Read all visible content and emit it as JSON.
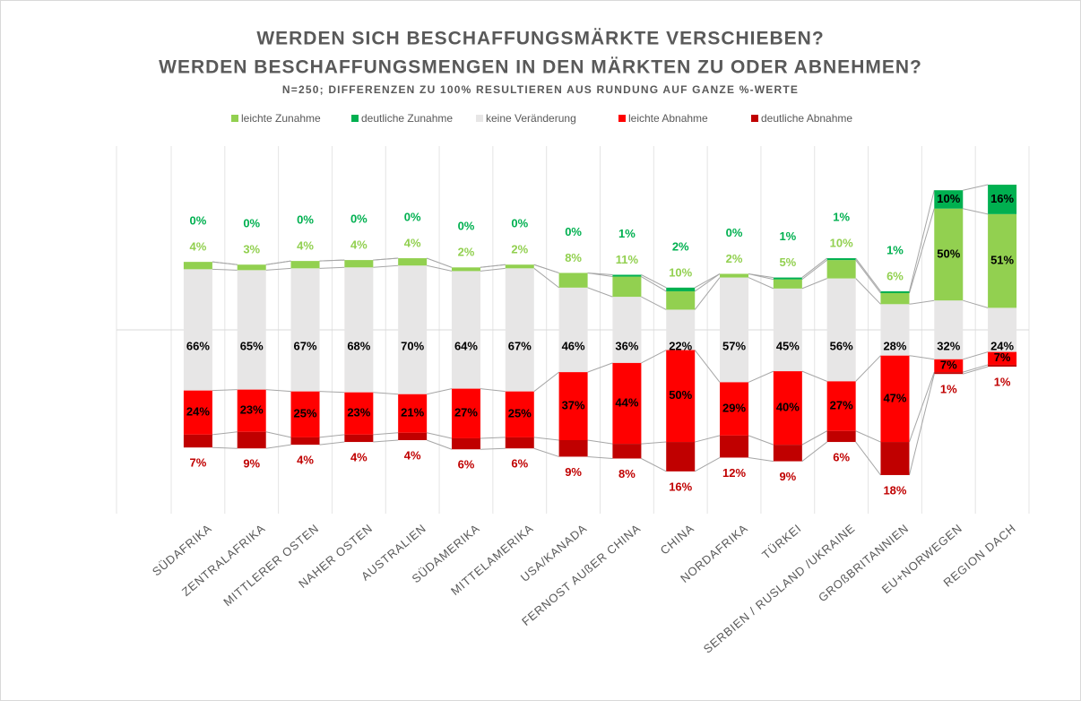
{
  "chart_data": {
    "type": "bar",
    "title": [
      "WERDEN SICH BESCHAFFUNGSMÄRKTE VERSCHIEBEN?",
      "WERDEN BESCHAFFUNGSMENGEN IN DEN MÄRKTEN ZU ODER ABNEHMEN?"
    ],
    "subtitle": "N=250; DIFFERENZEN ZU 100% RESULTIEREN AUS RUNDUNG AUF GANZE %-WERTE",
    "categories": [
      "SÜDAFRIKA",
      "ZENTRALAFRIKA",
      "MITTLERER OSTEN",
      "NAHER OSTEN",
      "AUSTRALIEN",
      "SÜDAMERIKA",
      "MITTELAMERIKA",
      "USA/KANADA",
      "FERNOST AUßER CHINA",
      "CHINA",
      "NORDAFRIKA",
      "TÜRKEI",
      "SERBIEN / RUSLAND /UKRAINE",
      "GROßBRITANNIEN",
      "EU+NORWEGEN",
      "REGION DACH"
    ],
    "series": [
      {
        "name": "leichte Zunahme",
        "color": "#92d050",
        "label_color": "#92d050",
        "values": [
          4,
          3,
          4,
          4,
          4,
          2,
          2,
          8,
          11,
          10,
          2,
          5,
          10,
          6,
          50,
          51
        ],
        "value_labels": [
          "4%",
          "3%",
          "4%",
          "4%",
          "4%",
          "2%",
          "2%",
          "8%",
          "11%",
          "10%",
          "2%",
          "5%",
          "10%",
          "6%",
          "50%",
          "51%"
        ]
      },
      {
        "name": "deutliche Zunahme",
        "color": "#00b050",
        "label_color": "#00b050",
        "values": [
          0,
          0,
          0,
          0,
          0,
          0,
          0,
          0,
          1,
          2,
          0,
          1,
          1,
          1,
          10,
          16
        ],
        "value_labels": [
          "0%",
          "0%",
          "0%",
          "0%",
          "0%",
          "0%",
          "0%",
          "0%",
          "1%",
          "2%",
          "0%",
          "1%",
          "1%",
          "1%",
          "10%",
          "16%"
        ]
      },
      {
        "name": "keine Veränderung",
        "color": "#e7e6e6",
        "label_color": "#000000",
        "values": [
          66,
          65,
          67,
          68,
          70,
          64,
          67,
          46,
          36,
          22,
          57,
          45,
          56,
          28,
          32,
          24
        ],
        "value_labels": [
          "66%",
          "65%",
          "67%",
          "68%",
          "70%",
          "64%",
          "67%",
          "46%",
          "36%",
          "22%",
          "57%",
          "45%",
          "56%",
          "28%",
          "32%",
          "24%"
        ]
      },
      {
        "name": "leichte Abnahme",
        "color": "#ff0000",
        "label_color": "#000000",
        "values": [
          24,
          23,
          25,
          23,
          21,
          27,
          25,
          37,
          44,
          50,
          29,
          40,
          27,
          47,
          7,
          7
        ],
        "value_labels": [
          "24%",
          "23%",
          "25%",
          "23%",
          "21%",
          "27%",
          "25%",
          "37%",
          "44%",
          "50%",
          "29%",
          "40%",
          "27%",
          "47%",
          "7%",
          "7%"
        ]
      },
      {
        "name": "deutliche Abnahme",
        "color": "#c00000",
        "label_color": "#c00000",
        "values": [
          7,
          9,
          4,
          4,
          4,
          6,
          6,
          9,
          8,
          16,
          12,
          9,
          6,
          18,
          1,
          1
        ],
        "value_labels": [
          "7%",
          "9%",
          "4%",
          "4%",
          "4%",
          "6%",
          "6%",
          "9%",
          "8%",
          "16%",
          "12%",
          "9%",
          "6%",
          "18%",
          "1%",
          "1%"
        ]
      }
    ],
    "ylim": [
      -100,
      100
    ],
    "legend": "top"
  }
}
